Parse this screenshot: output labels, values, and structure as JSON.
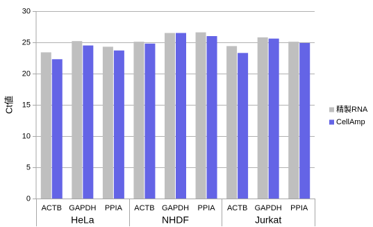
{
  "chart_data": {
    "type": "bar",
    "ylabel": "Ct値",
    "ylim": [
      0,
      30
    ],
    "yticks": [
      0,
      5,
      10,
      15,
      20,
      25,
      30
    ],
    "grid": true,
    "legend_position": "right",
    "groups": [
      {
        "label": "HeLa",
        "categories": [
          "ACTB",
          "GAPDH",
          "PPIA"
        ]
      },
      {
        "label": "NHDF",
        "categories": [
          "ACTB",
          "GAPDH",
          "PPIA"
        ]
      },
      {
        "label": "Jurkat",
        "categories": [
          "ACTB",
          "GAPDH",
          "PPIA"
        ]
      }
    ],
    "series": [
      {
        "name": "精製RNA",
        "color": "#bfbfbf",
        "values": [
          23.4,
          25.2,
          24.3,
          25.1,
          26.5,
          26.6,
          24.4,
          25.8,
          25.1
        ]
      },
      {
        "name": "CellAmp",
        "color": "#6464e6",
        "values": [
          22.3,
          24.5,
          23.7,
          24.8,
          26.5,
          26.0,
          23.3,
          25.6,
          24.9
        ]
      }
    ]
  }
}
